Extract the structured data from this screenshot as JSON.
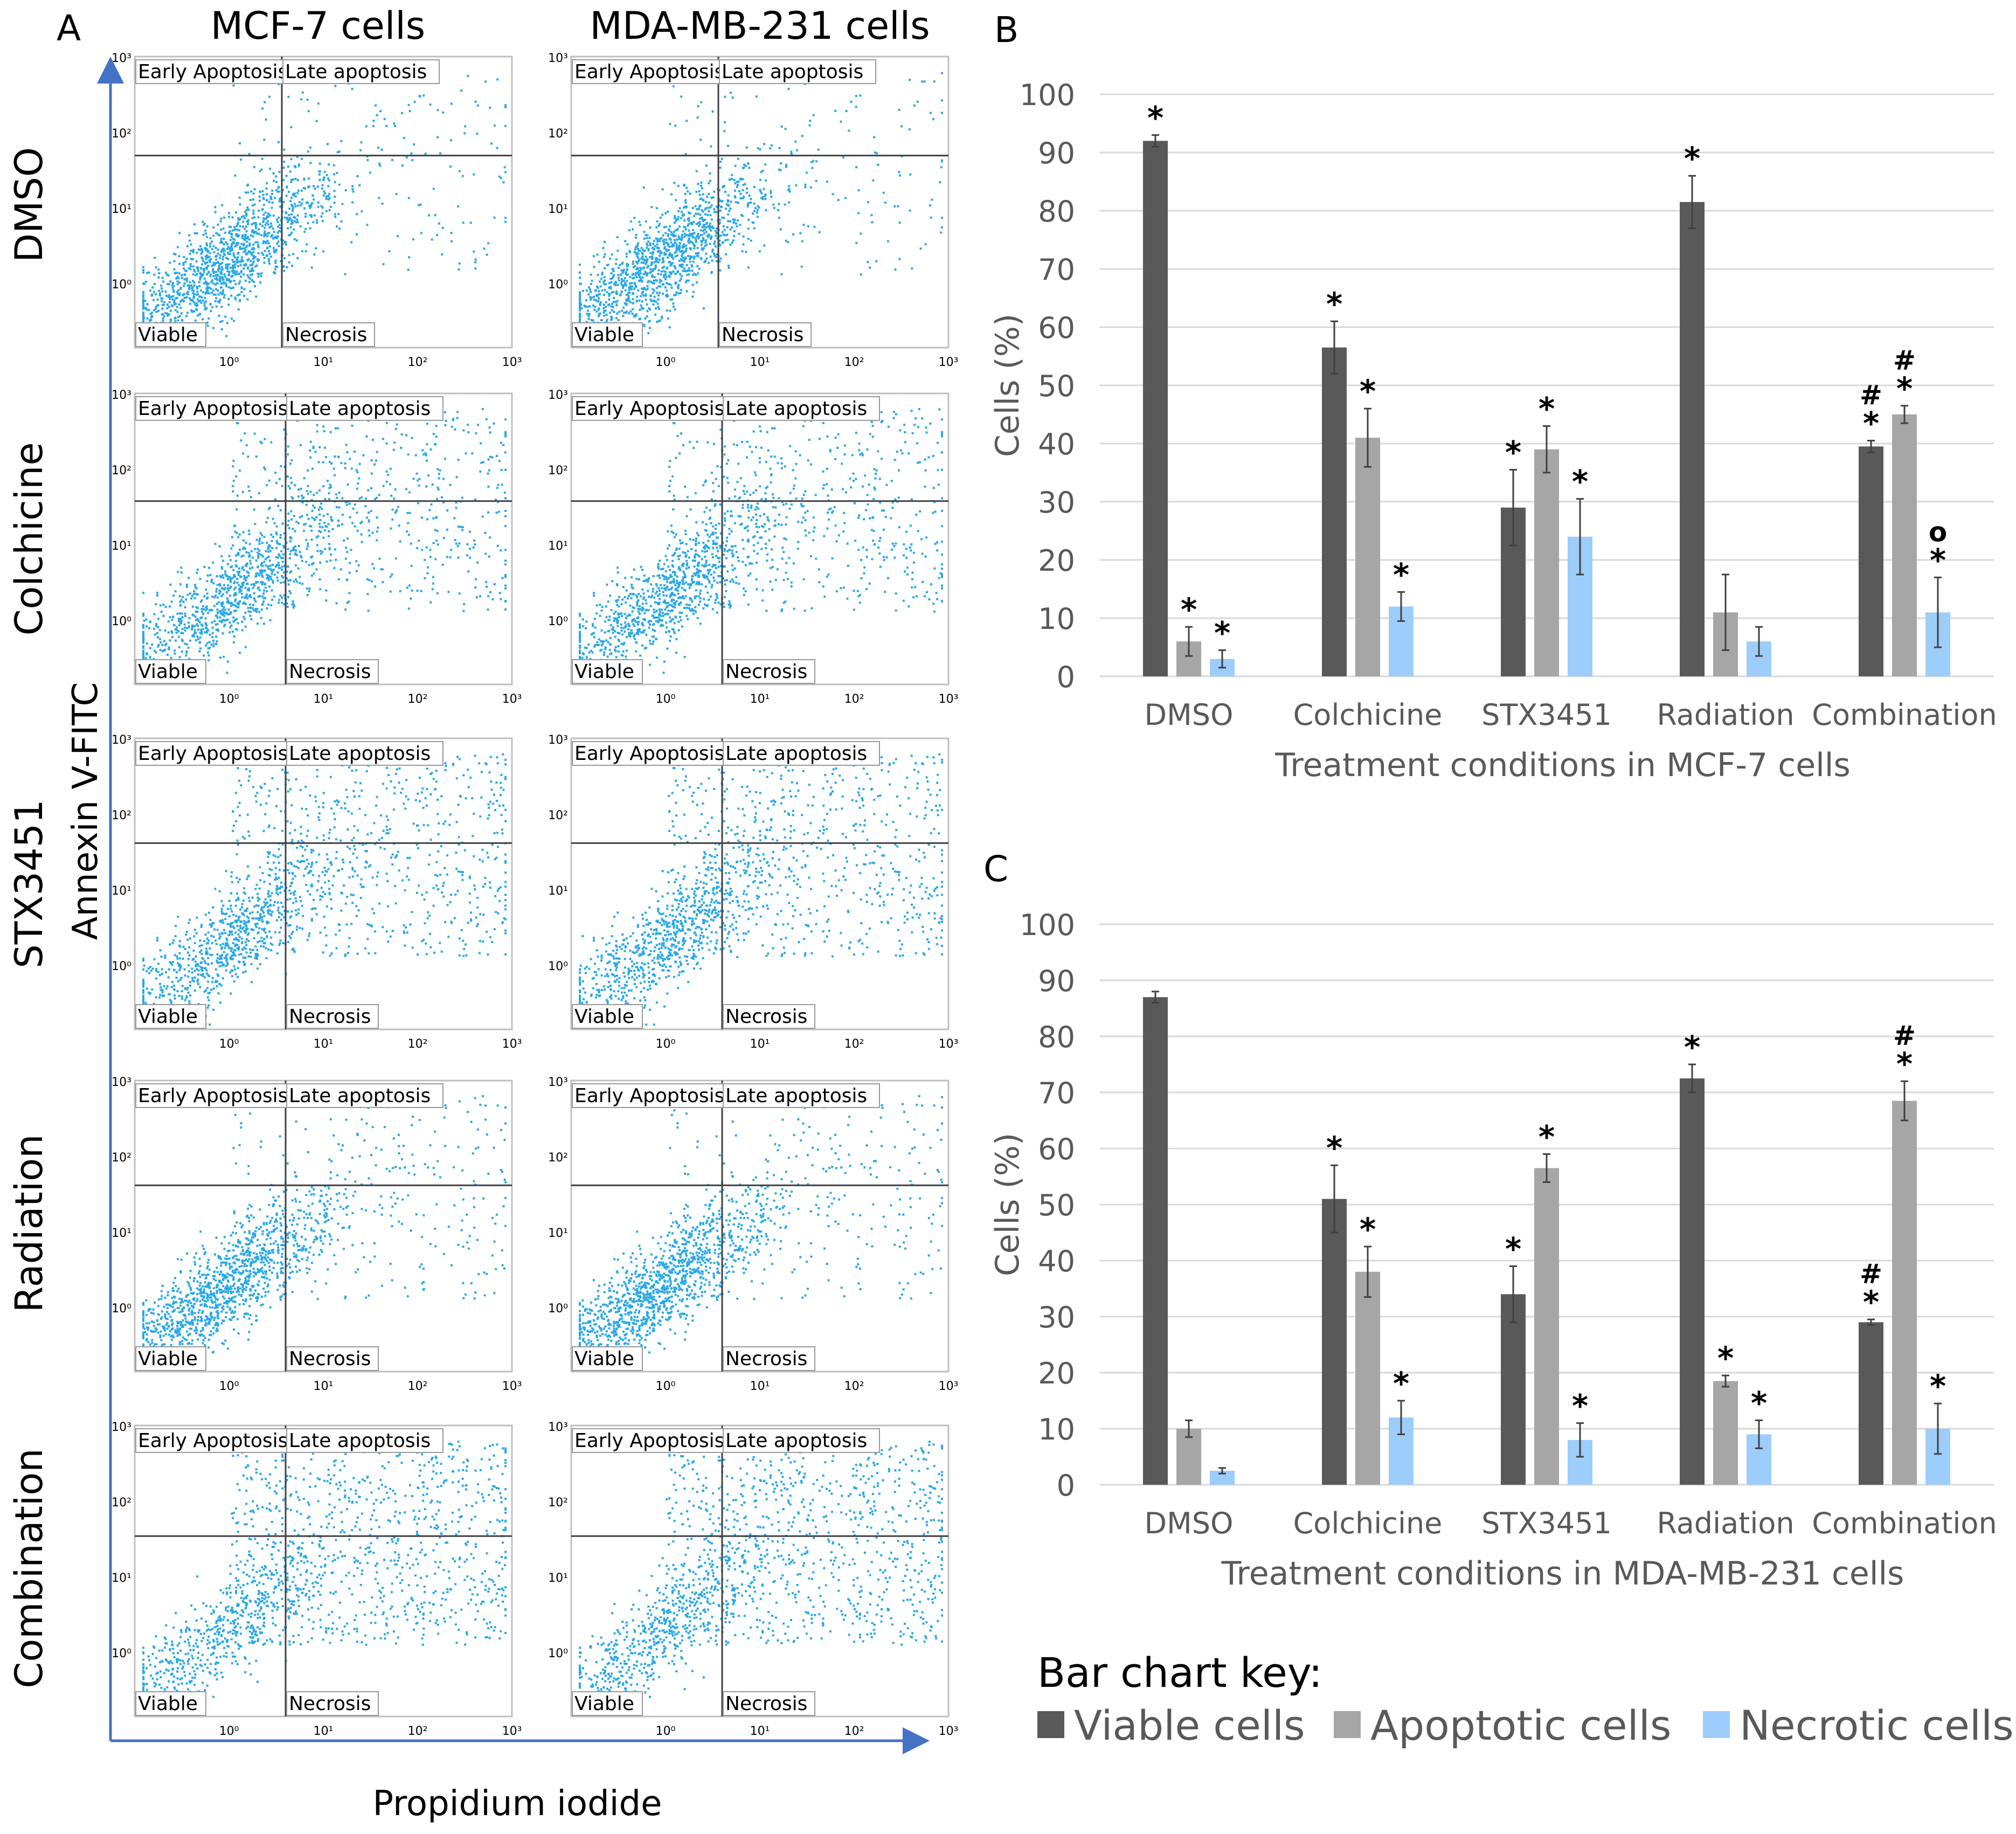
{
  "panel_a": {
    "letter": "A",
    "column_titles": [
      "MCF-7 cells",
      "MDA-MB-231 cells"
    ],
    "row_labels": [
      "DMSO",
      "Colchicine",
      "STX3451",
      "Radiation",
      "Combination"
    ],
    "y_axis_label": "Annexin V-FITC",
    "x_axis_label": "Propidium iodide",
    "quadrant_labels": {
      "tl": "Early Apoptosis",
      "tr": "Late apoptosis",
      "bl": "Viable",
      "br": "Necrosis"
    },
    "tick_labels": [
      "10⁰",
      "10¹",
      "10²",
      "10³"
    ]
  },
  "panel_b": {
    "letter": "B",
    "annotations": [
      [
        "*"
      ],
      [
        "*"
      ],
      [
        "*"
      ],
      [
        "*"
      ],
      [
        "*"
      ],
      [
        "*"
      ],
      [
        "*"
      ],
      [
        "*"
      ],
      [
        "*"
      ],
      [
        "*"
      ],
      [],
      [],
      [
        "#",
        "*"
      ],
      [
        "#",
        "*"
      ],
      [
        "o",
        "*"
      ]
    ]
  },
  "panel_c": {
    "letter": "C",
    "annotations": [
      [],
      [],
      [],
      [
        "*"
      ],
      [
        "*"
      ],
      [
        "*"
      ],
      [
        "*"
      ],
      [
        "*"
      ],
      [
        "*"
      ],
      [
        "*"
      ],
      [
        "*"
      ],
      [
        "*"
      ],
      [
        "#",
        "*"
      ],
      [
        "#",
        "*"
      ],
      [
        "*"
      ]
    ]
  },
  "legend": {
    "title": "Bar chart key:",
    "items": [
      "Viable cells",
      "Apoptotic cells",
      "Necrotic cells"
    ]
  },
  "colors": {
    "viable": "#595959",
    "apoptotic": "#a6a6a6",
    "necrotic": "#9dcdfa",
    "scatter": "#29a8e6",
    "axis_arrow": "#4472c4"
  },
  "chart_data": [
    {
      "type": "bar",
      "title": "",
      "xlabel": "Treatment conditions in MCF-7 cells",
      "ylabel": "Cells (%)",
      "ylim": [
        0,
        100
      ],
      "yticks": [
        0,
        10,
        20,
        30,
        40,
        50,
        60,
        70,
        80,
        90,
        100
      ],
      "grid": true,
      "categories": [
        "DMSO",
        "Colchicine",
        "STX3451",
        "Radiation",
        "Combination"
      ],
      "series": [
        {
          "name": "Viable cells",
          "values": [
            92,
            56.5,
            29,
            81.5,
            39.5
          ],
          "errors": [
            1,
            4.5,
            6.5,
            4.5,
            1
          ]
        },
        {
          "name": "Apoptotic cells",
          "values": [
            6,
            41,
            39,
            11,
            45
          ],
          "errors": [
            2.5,
            5,
            4,
            6.5,
            1.5
          ]
        },
        {
          "name": "Necrotic cells",
          "values": [
            3,
            12,
            24,
            6,
            11
          ],
          "errors": [
            1.5,
            2.5,
            6.5,
            2.5,
            6
          ]
        }
      ]
    },
    {
      "type": "bar",
      "title": "",
      "xlabel": "Treatment conditions in MDA-MB-231 cells",
      "ylabel": "Cells (%)",
      "ylim": [
        0,
        100
      ],
      "yticks": [
        0,
        10,
        20,
        30,
        40,
        50,
        60,
        70,
        80,
        90,
        100
      ],
      "grid": true,
      "categories": [
        "DMSO",
        "Colchicine",
        "STX3451",
        "Radiation",
        "Combination"
      ],
      "series": [
        {
          "name": "Viable cells",
          "values": [
            87,
            51,
            34,
            72.5,
            29
          ],
          "errors": [
            1,
            6,
            5,
            2.5,
            0.5
          ]
        },
        {
          "name": "Apoptotic cells",
          "values": [
            10,
            38,
            56.5,
            18.5,
            68.5
          ],
          "errors": [
            1.5,
            4.5,
            2.5,
            1,
            3.5
          ]
        },
        {
          "name": "Necrotic cells",
          "values": [
            2.5,
            12,
            8,
            9,
            10
          ],
          "errors": [
            0.5,
            3,
            3,
            2.5,
            4.5
          ]
        }
      ]
    }
  ]
}
